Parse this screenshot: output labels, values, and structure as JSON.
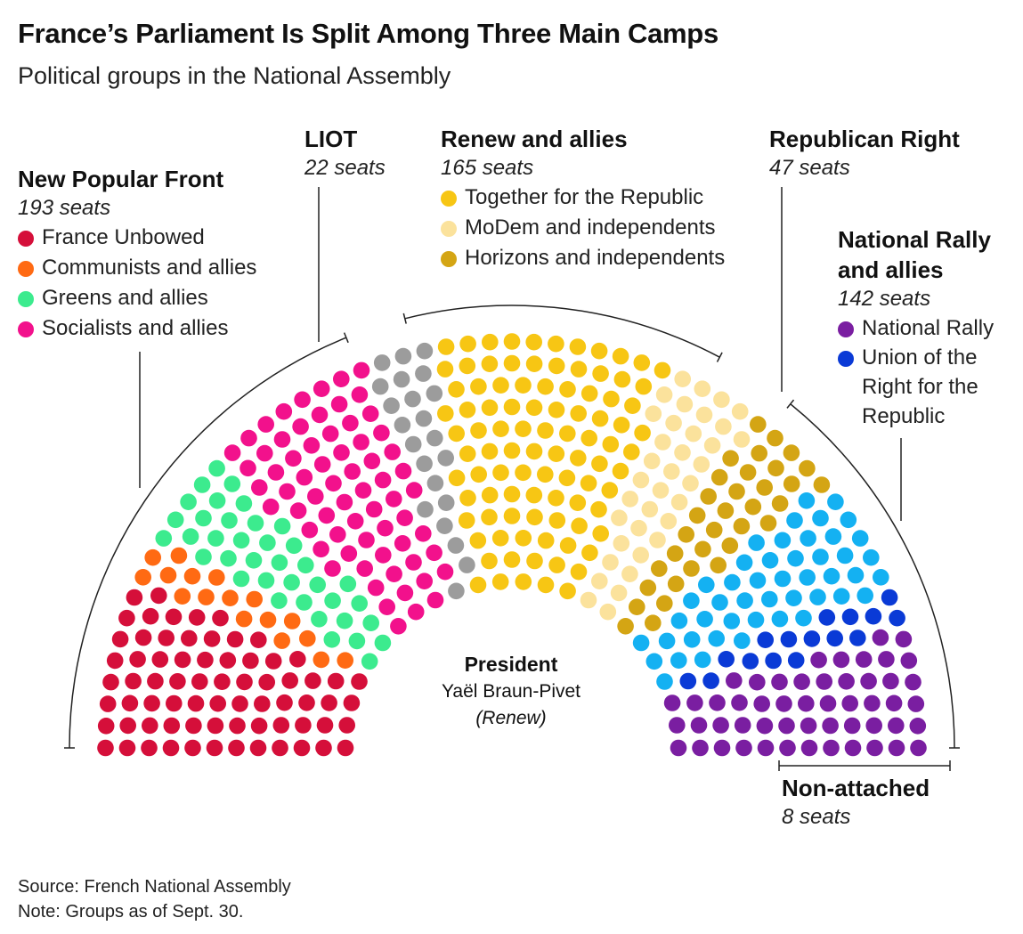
{
  "header": {
    "title": "France’s Parliament Is Split Among Three Main Camps",
    "subtitle": "Political groups in the National Assembly"
  },
  "groups": {
    "nfp": {
      "name": "New Popular Front",
      "seats_label": "193 seats",
      "members": [
        {
          "label": "France Unbowed",
          "color": "#d50f3a"
        },
        {
          "label": "Communists and allies",
          "color": "#ff6a13"
        },
        {
          "label": "Greens and allies",
          "color": "#3ceb8e"
        },
        {
          "label": "Socialists and allies",
          "color": "#f2118c"
        }
      ]
    },
    "liot": {
      "name": "LIOT",
      "seats_label": "22 seats",
      "color": "#9c9c9c"
    },
    "renew": {
      "name": "Renew and allies",
      "seats_label": "165 seats",
      "members": [
        {
          "label": "Together for the Republic",
          "color": "#f7c614"
        },
        {
          "label": "MoDem and independents",
          "color": "#fbe29c"
        },
        {
          "label": "Horizons and independents",
          "color": "#d4a514"
        }
      ]
    },
    "lr": {
      "name": "Republican Right",
      "seats_label": "47 seats",
      "color": "#14b1f2"
    },
    "rn": {
      "name_line1": "National Rally",
      "name_line2": "and allies",
      "seats_label": "142 seats",
      "members": [
        {
          "label": "National Rally",
          "color": "#7a1ea1"
        },
        {
          "label_lines": [
            "Union of the",
            "Right for the",
            "Republic"
          ],
          "color": "#0a3ad6"
        }
      ]
    },
    "na": {
      "name": "Non-attached",
      "seats_label": "8 seats",
      "color": "#d3d3d3"
    }
  },
  "president": {
    "title": "President",
    "name": "Yaël Braun-Pivet",
    "group": "(Renew)"
  },
  "footer": {
    "source": "Source: French National Assembly",
    "note": "Note: Groups as of Sept. 30."
  },
  "chart_data": {
    "type": "hemicycle",
    "total_seats": 577,
    "series": [
      {
        "name": "France Unbowed",
        "value": 71,
        "color": "#d50f3a"
      },
      {
        "name": "Communists and allies",
        "value": 17,
        "color": "#ff6a13"
      },
      {
        "name": "Greens and allies",
        "value": 38,
        "color": "#3ceb8e"
      },
      {
        "name": "Socialists and allies",
        "value": 67,
        "color": "#f2118c"
      },
      {
        "name": "LIOT",
        "value": 22,
        "color": "#9c9c9c"
      },
      {
        "name": "Together for the Republic",
        "value": 95,
        "color": "#f7c614"
      },
      {
        "name": "MoDem and independents",
        "value": 36,
        "color": "#fbe29c"
      },
      {
        "name": "Horizons and independents",
        "value": 34,
        "color": "#d4a514"
      },
      {
        "name": "Republican Right",
        "value": 47,
        "color": "#14b1f2"
      },
      {
        "name": "Union of the Right for the Republic",
        "value": 16,
        "color": "#0a3ad6"
      },
      {
        "name": "National Rally",
        "value": 126,
        "color": "#7a1ea1"
      },
      {
        "name": "Non-attached",
        "value": 8,
        "color": "#d3d3d3"
      }
    ]
  }
}
